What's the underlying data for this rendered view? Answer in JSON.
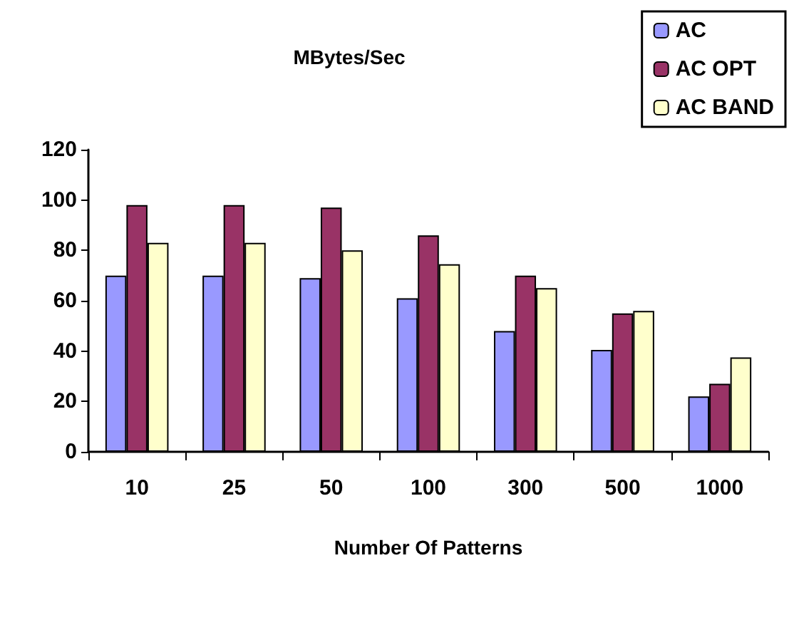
{
  "chart_data": {
    "type": "bar",
    "title": "MBytes/Sec",
    "xlabel": "Number Of Patterns",
    "categories": [
      "10",
      "25",
      "50",
      "100",
      "300",
      "500",
      "1000"
    ],
    "series": [
      {
        "name": "AC",
        "color": "#9999ff",
        "values": [
          70,
          70,
          69,
          61,
          48,
          40.5,
          22
        ]
      },
      {
        "name": "AC OPT",
        "color": "#993366",
        "values": [
          98,
          98,
          97,
          86,
          70,
          55,
          27
        ]
      },
      {
        "name": "AC BAND",
        "color": "#ffffcc",
        "values": [
          83,
          83,
          80,
          74.5,
          65,
          56,
          37.5
        ]
      }
    ],
    "ylim": [
      0,
      120
    ],
    "yticks": [
      0,
      20,
      40,
      60,
      80,
      100,
      120
    ],
    "grid": false,
    "legend": "top right"
  }
}
